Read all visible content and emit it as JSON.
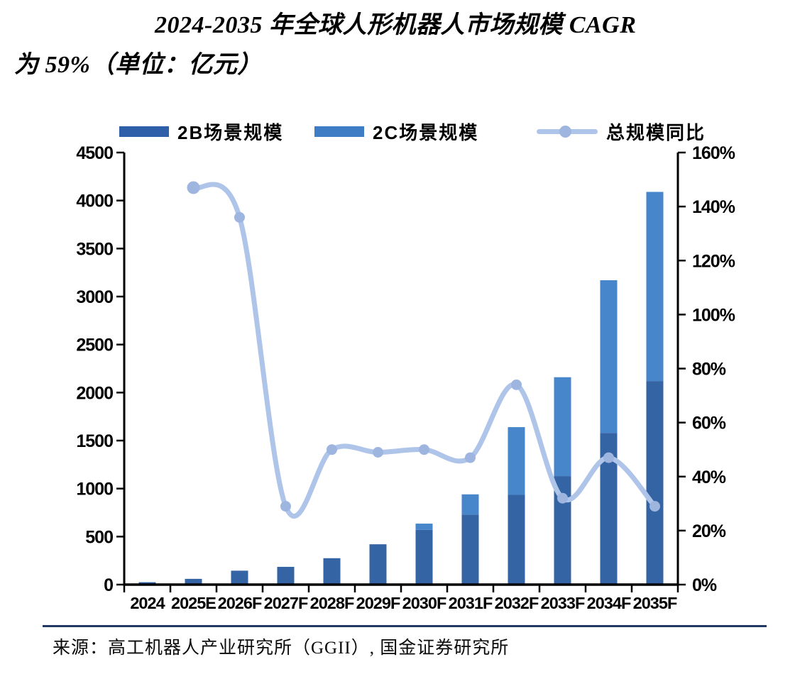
{
  "title": {
    "line1": "2024-2035 年全球人形机器人市场规模 CAGR",
    "line2": "为 59%（单位：亿元）"
  },
  "legend": {
    "item_2b": "2B场景规模",
    "item_2c": "2C场景规模",
    "item_yoy": "总规模同比"
  },
  "colors": {
    "bar_2b": "#3464A4",
    "bar_2c": "#4886CB",
    "yoy_line": "#AFC4E9",
    "yoy_marker": "#9EB5E0",
    "axis": "#000000",
    "divider": "#1F3864"
  },
  "source": "来源：高工机器人产业研究所（GGII）, 国金证券研究所",
  "chart_data": {
    "type": "bar",
    "subtype": "stacked-bars-with-line",
    "title": "2024-2035 年全球人形机器人市场规模 CAGR 为 59%（单位：亿元）",
    "categories": [
      "2024",
      "2025E",
      "2026F",
      "2027F",
      "2028F",
      "2029F",
      "2030F",
      "2031F",
      "2032F",
      "2033F",
      "2034F",
      "2035F"
    ],
    "series": [
      {
        "name": "2B场景规模",
        "type": "bar",
        "stack": true,
        "axis": "left",
        "color": "#3464A4",
        "values": [
          25,
          60,
          145,
          185,
          275,
          420,
          570,
          730,
          935,
          1130,
          1580,
          2120
        ]
      },
      {
        "name": "2C场景规模",
        "type": "bar",
        "stack": true,
        "axis": "left",
        "color": "#4886CB",
        "values": [
          0,
          0,
          0,
          0,
          0,
          0,
          65,
          210,
          705,
          1030,
          1590,
          1970
        ]
      },
      {
        "name": "总规模同比",
        "type": "line",
        "axis": "right",
        "color": "#AFC4E9",
        "marker_color": "#9EB5E0",
        "values": [
          null,
          147,
          136,
          29,
          50,
          49,
          50,
          47,
          74,
          32,
          47,
          29
        ],
        "unit": "%"
      }
    ],
    "left_axis": {
      "min": 0,
      "max": 4500,
      "step": 500
    },
    "right_axis": {
      "min": 0,
      "max": 160,
      "step": 20,
      "suffix": "%"
    },
    "grid": false,
    "legend_position": "top",
    "xlabel": "",
    "ylabel": ""
  }
}
